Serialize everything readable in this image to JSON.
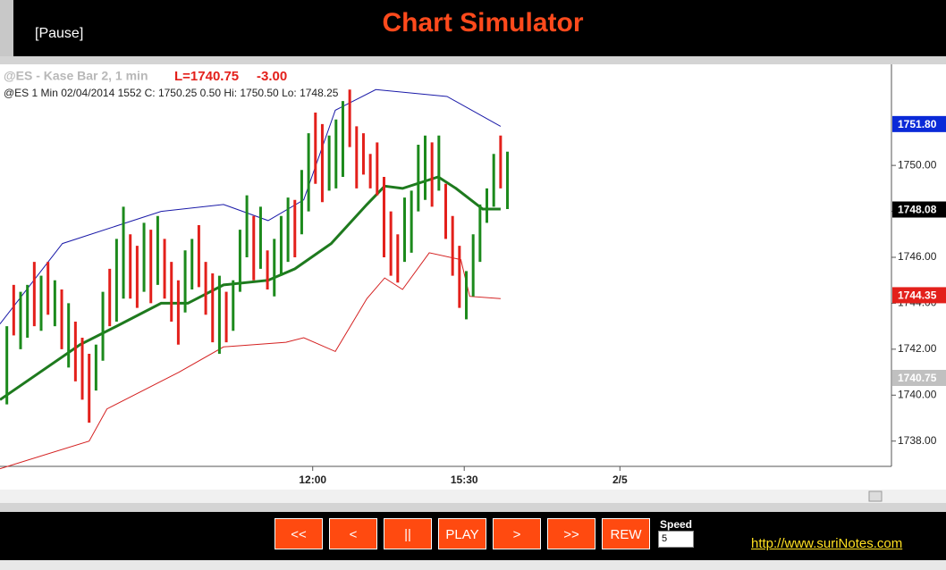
{
  "header": {
    "status": "[Pause]",
    "title": "Chart Simulator"
  },
  "chart_data": {
    "type": "ohlc",
    "title": "@ES - Kase Bar 2, 1 min",
    "last": "L=1740.75",
    "change": "-3.00",
    "subtitle": "@ES 1 Min 02/04/2014 1552 C: 1750.25 0.50 Hi: 1750.50 Lo: 1748.25",
    "bars": {
      "high": [
        1743.0,
        1744.8,
        1744.5,
        1744.8,
        1745.8,
        1745.2,
        1745.8,
        1745.0,
        1744.6,
        1744.0,
        1743.2,
        1742.5,
        1741.8,
        1742.2,
        1744.5,
        1745.5,
        1746.8,
        1748.2,
        1747.0,
        1746.5,
        1747.5,
        1747.2,
        1747.8,
        1746.8,
        1745.8,
        1745.0,
        1746.3,
        1746.8,
        1747.4,
        1745.8,
        1745.3,
        1745.2,
        1744.5,
        1745.0,
        1747.2,
        1748.7,
        1747.8,
        1748.2,
        1746.3,
        1746.8,
        1747.8,
        1748.6,
        1748.5,
        1749.8,
        1751.4,
        1752.3,
        1751.8,
        1751.3,
        1752.0,
        1752.8,
        1753.3,
        1751.7,
        1751.4,
        1750.5,
        1751.0,
        1749.5,
        1748.0,
        1747.0,
        1748.6,
        1748.9,
        1750.9,
        1751.3,
        1751.0,
        1751.3,
        1749.2,
        1747.8,
        1746.5,
        1745.4,
        1747.0,
        1748.3,
        1749.0,
        1750.5,
        1751.3,
        1750.6
      ],
      "low": [
        1739.6,
        1742.6,
        1742.0,
        1742.5,
        1743.0,
        1742.8,
        1743.5,
        1743.0,
        1742.0,
        1741.2,
        1740.6,
        1739.8,
        1738.8,
        1740.2,
        1741.5,
        1743.0,
        1743.2,
        1744.2,
        1744.2,
        1743.8,
        1744.5,
        1744.0,
        1744.8,
        1744.2,
        1743.2,
        1742.2,
        1743.6,
        1744.6,
        1744.7,
        1743.5,
        1742.3,
        1741.8,
        1742.3,
        1742.8,
        1744.5,
        1746.0,
        1745.0,
        1745.5,
        1744.6,
        1744.3,
        1745.2,
        1745.8,
        1746.0,
        1747.0,
        1748.0,
        1749.2,
        1748.4,
        1748.9,
        1749.0,
        1749.5,
        1750.8,
        1749.0,
        1749.6,
        1749.0,
        1748.7,
        1746.0,
        1745.2,
        1744.9,
        1745.8,
        1746.2,
        1748.0,
        1748.5,
        1748.2,
        1748.9,
        1746.8,
        1745.2,
        1743.8,
        1743.3,
        1744.3,
        1745.8,
        1747.5,
        1748.2,
        1749.0,
        1748.1
      ],
      "up": [
        true,
        false,
        true,
        true,
        false,
        true,
        false,
        true,
        false,
        true,
        false,
        false,
        false,
        true,
        true,
        false,
        true,
        true,
        false,
        false,
        true,
        false,
        true,
        false,
        false,
        false,
        true,
        true,
        false,
        false,
        false,
        true,
        false,
        true,
        true,
        true,
        false,
        true,
        false,
        true,
        true,
        true,
        false,
        true,
        true,
        false,
        false,
        true,
        true,
        true,
        false,
        false,
        false,
        false,
        false,
        false,
        false,
        false,
        true,
        true,
        true,
        true,
        false,
        true,
        false,
        false,
        false,
        true,
        true,
        true,
        true,
        true,
        false,
        true
      ]
    },
    "colors": {
      "up": "#1c8a1c",
      "down": "#e3201b"
    },
    "lines": [
      {
        "color": "#1a1aa8",
        "width": 1,
        "x": [
          -1,
          8.1,
          22.5,
          31.6,
          38.1,
          43.3,
          47.9,
          53.8,
          64.2,
          72.0
        ],
        "values": [
          1743.1,
          1746.6,
          1748.0,
          1748.3,
          1747.6,
          1748.5,
          1752.4,
          1753.3,
          1753.0,
          1751.7
        ]
      },
      {
        "color": "#d42020",
        "width": 1,
        "x": [
          -1,
          12.0,
          14.6,
          25.1,
          31.6,
          40.7,
          43.3,
          47.9,
          52.5,
          55.1,
          57.7,
          61.6,
          66.2,
          67.5,
          72.0
        ],
        "values": [
          1736.8,
          1738.0,
          1739.4,
          1741.0,
          1742.1,
          1742.3,
          1742.5,
          1741.9,
          1744.2,
          1745.1,
          1744.6,
          1746.2,
          1745.9,
          1744.3,
          1744.2
        ]
      },
      {
        "color": "#1e7a1e",
        "width": 3,
        "x": [
          -1,
          10.7,
          16,
          22.5,
          26.4,
          31.6,
          38.1,
          42,
          47.3,
          52.5,
          55.1,
          57.7,
          62.9,
          65.5,
          69.4,
          72
        ],
        "values": [
          1739.8,
          1742.2,
          1743.0,
          1744.0,
          1744.0,
          1744.8,
          1745.0,
          1745.5,
          1746.6,
          1748.3,
          1749.1,
          1749.0,
          1749.5,
          1749.0,
          1748.1,
          1748.1
        ]
      }
    ],
    "xlim": [
      -1,
      129
    ],
    "xticks": [
      {
        "value": 44.6,
        "label": "12:00"
      },
      {
        "value": 66.7,
        "label": "15:30"
      },
      {
        "value": 89.4,
        "label": "2/5"
      }
    ],
    "ylim": [
      1736.9,
      1754.4
    ],
    "yticks": [
      {
        "value": 1738,
        "label": "1738.00"
      },
      {
        "value": 1740,
        "label": "1740.00"
      },
      {
        "value": 1742,
        "label": "1742.00"
      },
      {
        "value": 1744,
        "label": "1744.00"
      },
      {
        "value": 1746,
        "label": "1746.00"
      },
      {
        "value": 1748,
        "label": "1748.00"
      },
      {
        "value": 1750,
        "label": "1750.00"
      }
    ],
    "markers": [
      {
        "value": 1751.8,
        "label": "1751.80",
        "color": "#0a2ad8"
      },
      {
        "value": 1748.08,
        "label": "1748.08",
        "color": "#000000"
      },
      {
        "value": 1744.35,
        "label": "1744.35",
        "color": "#e3201b"
      },
      {
        "value": 1740.75,
        "label": "1740.75",
        "color": "#c0c0c0"
      }
    ]
  },
  "controls": {
    "buttons": [
      "<<",
      "<",
      "||",
      "PLAY",
      ">",
      ">>",
      "REW"
    ],
    "speed_label": "Speed",
    "speed": "5"
  },
  "link": "http://www.suriNotes.com"
}
